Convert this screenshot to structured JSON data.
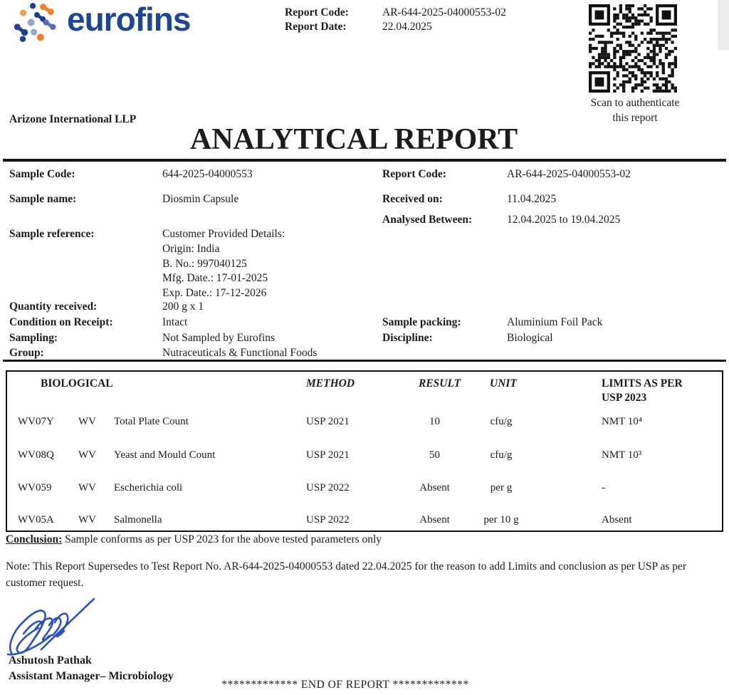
{
  "header": {
    "logo_text": "eurofins",
    "report_code_label": "Report Code:",
    "report_date_label": "Report Date:",
    "report_code": "AR-644-2025-04000553-02",
    "report_date": "22.04.2025",
    "qr_caption_line1": "Scan to authenticate",
    "qr_caption_line2": "this report"
  },
  "company": "Arizone International LLP",
  "title": "ANALYTICAL REPORT",
  "sample_info": {
    "left": [
      {
        "label": "Sample Code:",
        "value": "644-2025-04000553"
      },
      {
        "label": "Sample name:",
        "value": "Diosmin Capsule"
      },
      {
        "label": "Sample reference:",
        "value_lines": [
          "Customer Provided Details:",
          "Origin: India",
          "B. No.: 997040125",
          "Mfg. Date.: 17-01-2025",
          "Exp. Date.: 17-12-2026"
        ]
      },
      {
        "label": "Quantity received:",
        "value": "200 g x 1"
      },
      {
        "label": "Condition on Receipt:",
        "value": "Intact"
      },
      {
        "label": "Sampling:",
        "value": "Not Sampled by Eurofins"
      },
      {
        "label": "Group:",
        "value": "Nutraceuticals & Functional Foods"
      }
    ],
    "right": [
      {
        "label": "Report Code:",
        "value": "AR-644-2025-04000553-02"
      },
      {
        "label": "Received on:",
        "value": "11.04.2025"
      },
      {
        "label": "Analysed Between:",
        "value": "12.04.2025 to 19.04.2025"
      },
      {
        "label": "Sample packing:",
        "value": "Aluminium Foil Pack"
      },
      {
        "label": "Discipline:",
        "value": "Biological"
      }
    ]
  },
  "results_table": {
    "headers": {
      "section": "BIOLOGICAL",
      "method": "METHOD",
      "result": "RESULT",
      "unit": "UNIT",
      "limits_line1": "LIMITS AS PER",
      "limits_line2": "USP 2023"
    },
    "rows": [
      {
        "code": "WV07Y",
        "lab": "WV",
        "test": "Total Plate Count",
        "method": "USP 2021",
        "result": "10",
        "unit": "cfu/g",
        "limit": "NMT 10⁴"
      },
      {
        "code": "WV08Q",
        "lab": "WV",
        "test": "Yeast and Mould Count",
        "method": "USP 2021",
        "result": "50",
        "unit": "cfu/g",
        "limit": "NMT 10³"
      },
      {
        "code": "WV059",
        "lab": "WV",
        "test": "Escherichia coli",
        "method": "USP 2022",
        "result": "Absent",
        "unit": "per g",
        "limit": "-"
      },
      {
        "code": "WV05A",
        "lab": "WV",
        "test": "Salmonella",
        "method": "USP 2022",
        "result": "Absent",
        "unit": "per 10 g",
        "limit": "Absent"
      }
    ]
  },
  "conclusion": {
    "label": "Conclusion:",
    "text": " Sample conforms as per USP 2023 for the above tested parameters only"
  },
  "note": "Note: This Report Supersedes to Test Report No. AR-644-2025-04000553 dated 22.04.2025 for the reason to add Limits and conclusion as per USP as per customer request.",
  "signatory": {
    "name": "Ashutosh Pathak",
    "title": "Assistant Manager– Microbiology"
  },
  "footer": "************* END OF REPORT *************",
  "colors": {
    "brand_blue": "#1d4796",
    "signature_blue": "#2b4fc4",
    "logo_orange": "#ee7f22",
    "logo_navy": "#1e3f93",
    "logo_periwinkle": "#95a3d6"
  }
}
